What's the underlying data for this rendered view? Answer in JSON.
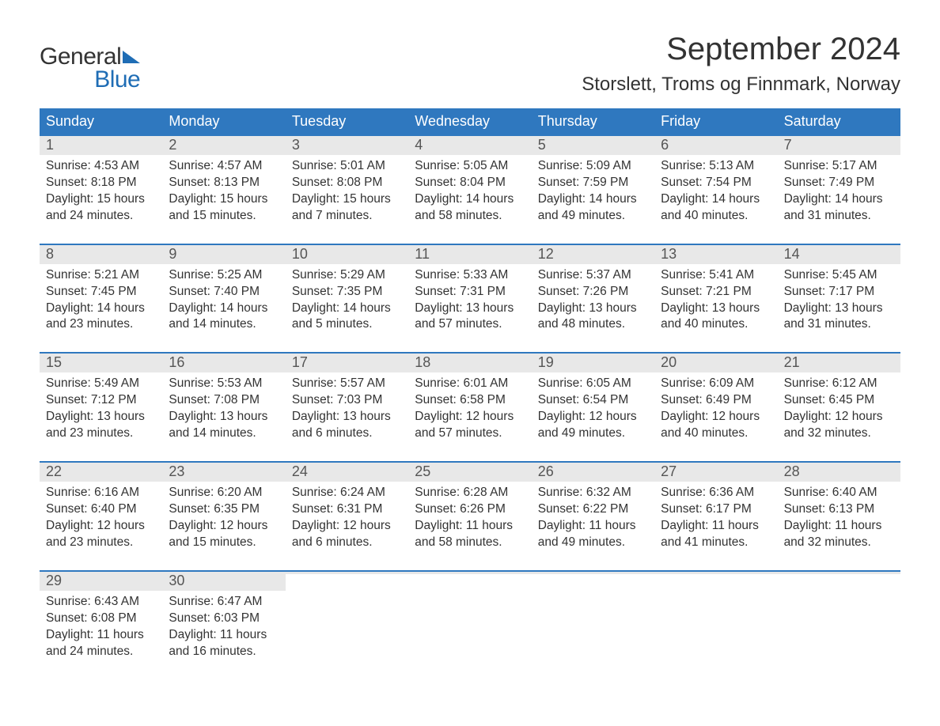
{
  "brand": {
    "part1": "General",
    "part2": "Blue"
  },
  "title": "September 2024",
  "location": "Storslett, Troms og Finnmark, Norway",
  "colors": {
    "header_blue": "#2f78bf",
    "logo_blue": "#1f6db5",
    "row_alt": "#e8e8e8",
    "text": "#333333"
  },
  "daynames": [
    "Sunday",
    "Monday",
    "Tuesday",
    "Wednesday",
    "Thursday",
    "Friday",
    "Saturday"
  ],
  "weeks": [
    [
      {
        "n": "1",
        "sr": "Sunrise: 4:53 AM",
        "ss": "Sunset: 8:18 PM",
        "d1": "Daylight: 15 hours",
        "d2": "and 24 minutes."
      },
      {
        "n": "2",
        "sr": "Sunrise: 4:57 AM",
        "ss": "Sunset: 8:13 PM",
        "d1": "Daylight: 15 hours",
        "d2": "and 15 minutes."
      },
      {
        "n": "3",
        "sr": "Sunrise: 5:01 AM",
        "ss": "Sunset: 8:08 PM",
        "d1": "Daylight: 15 hours",
        "d2": "and 7 minutes."
      },
      {
        "n": "4",
        "sr": "Sunrise: 5:05 AM",
        "ss": "Sunset: 8:04 PM",
        "d1": "Daylight: 14 hours",
        "d2": "and 58 minutes."
      },
      {
        "n": "5",
        "sr": "Sunrise: 5:09 AM",
        "ss": "Sunset: 7:59 PM",
        "d1": "Daylight: 14 hours",
        "d2": "and 49 minutes."
      },
      {
        "n": "6",
        "sr": "Sunrise: 5:13 AM",
        "ss": "Sunset: 7:54 PM",
        "d1": "Daylight: 14 hours",
        "d2": "and 40 minutes."
      },
      {
        "n": "7",
        "sr": "Sunrise: 5:17 AM",
        "ss": "Sunset: 7:49 PM",
        "d1": "Daylight: 14 hours",
        "d2": "and 31 minutes."
      }
    ],
    [
      {
        "n": "8",
        "sr": "Sunrise: 5:21 AM",
        "ss": "Sunset: 7:45 PM",
        "d1": "Daylight: 14 hours",
        "d2": "and 23 minutes."
      },
      {
        "n": "9",
        "sr": "Sunrise: 5:25 AM",
        "ss": "Sunset: 7:40 PM",
        "d1": "Daylight: 14 hours",
        "d2": "and 14 minutes."
      },
      {
        "n": "10",
        "sr": "Sunrise: 5:29 AM",
        "ss": "Sunset: 7:35 PM",
        "d1": "Daylight: 14 hours",
        "d2": "and 5 minutes."
      },
      {
        "n": "11",
        "sr": "Sunrise: 5:33 AM",
        "ss": "Sunset: 7:31 PM",
        "d1": "Daylight: 13 hours",
        "d2": "and 57 minutes."
      },
      {
        "n": "12",
        "sr": "Sunrise: 5:37 AM",
        "ss": "Sunset: 7:26 PM",
        "d1": "Daylight: 13 hours",
        "d2": "and 48 minutes."
      },
      {
        "n": "13",
        "sr": "Sunrise: 5:41 AM",
        "ss": "Sunset: 7:21 PM",
        "d1": "Daylight: 13 hours",
        "d2": "and 40 minutes."
      },
      {
        "n": "14",
        "sr": "Sunrise: 5:45 AM",
        "ss": "Sunset: 7:17 PM",
        "d1": "Daylight: 13 hours",
        "d2": "and 31 minutes."
      }
    ],
    [
      {
        "n": "15",
        "sr": "Sunrise: 5:49 AM",
        "ss": "Sunset: 7:12 PM",
        "d1": "Daylight: 13 hours",
        "d2": "and 23 minutes."
      },
      {
        "n": "16",
        "sr": "Sunrise: 5:53 AM",
        "ss": "Sunset: 7:08 PM",
        "d1": "Daylight: 13 hours",
        "d2": "and 14 minutes."
      },
      {
        "n": "17",
        "sr": "Sunrise: 5:57 AM",
        "ss": "Sunset: 7:03 PM",
        "d1": "Daylight: 13 hours",
        "d2": "and 6 minutes."
      },
      {
        "n": "18",
        "sr": "Sunrise: 6:01 AM",
        "ss": "Sunset: 6:58 PM",
        "d1": "Daylight: 12 hours",
        "d2": "and 57 minutes."
      },
      {
        "n": "19",
        "sr": "Sunrise: 6:05 AM",
        "ss": "Sunset: 6:54 PM",
        "d1": "Daylight: 12 hours",
        "d2": "and 49 minutes."
      },
      {
        "n": "20",
        "sr": "Sunrise: 6:09 AM",
        "ss": "Sunset: 6:49 PM",
        "d1": "Daylight: 12 hours",
        "d2": "and 40 minutes."
      },
      {
        "n": "21",
        "sr": "Sunrise: 6:12 AM",
        "ss": "Sunset: 6:45 PM",
        "d1": "Daylight: 12 hours",
        "d2": "and 32 minutes."
      }
    ],
    [
      {
        "n": "22",
        "sr": "Sunrise: 6:16 AM",
        "ss": "Sunset: 6:40 PM",
        "d1": "Daylight: 12 hours",
        "d2": "and 23 minutes."
      },
      {
        "n": "23",
        "sr": "Sunrise: 6:20 AM",
        "ss": "Sunset: 6:35 PM",
        "d1": "Daylight: 12 hours",
        "d2": "and 15 minutes."
      },
      {
        "n": "24",
        "sr": "Sunrise: 6:24 AM",
        "ss": "Sunset: 6:31 PM",
        "d1": "Daylight: 12 hours",
        "d2": "and 6 minutes."
      },
      {
        "n": "25",
        "sr": "Sunrise: 6:28 AM",
        "ss": "Sunset: 6:26 PM",
        "d1": "Daylight: 11 hours",
        "d2": "and 58 minutes."
      },
      {
        "n": "26",
        "sr": "Sunrise: 6:32 AM",
        "ss": "Sunset: 6:22 PM",
        "d1": "Daylight: 11 hours",
        "d2": "and 49 minutes."
      },
      {
        "n": "27",
        "sr": "Sunrise: 6:36 AM",
        "ss": "Sunset: 6:17 PM",
        "d1": "Daylight: 11 hours",
        "d2": "and 41 minutes."
      },
      {
        "n": "28",
        "sr": "Sunrise: 6:40 AM",
        "ss": "Sunset: 6:13 PM",
        "d1": "Daylight: 11 hours",
        "d2": "and 32 minutes."
      }
    ],
    [
      {
        "n": "29",
        "sr": "Sunrise: 6:43 AM",
        "ss": "Sunset: 6:08 PM",
        "d1": "Daylight: 11 hours",
        "d2": "and 24 minutes."
      },
      {
        "n": "30",
        "sr": "Sunrise: 6:47 AM",
        "ss": "Sunset: 6:03 PM",
        "d1": "Daylight: 11 hours",
        "d2": "and 16 minutes."
      },
      {
        "n": "",
        "sr": "",
        "ss": "",
        "d1": "",
        "d2": ""
      },
      {
        "n": "",
        "sr": "",
        "ss": "",
        "d1": "",
        "d2": ""
      },
      {
        "n": "",
        "sr": "",
        "ss": "",
        "d1": "",
        "d2": ""
      },
      {
        "n": "",
        "sr": "",
        "ss": "",
        "d1": "",
        "d2": ""
      },
      {
        "n": "",
        "sr": "",
        "ss": "",
        "d1": "",
        "d2": ""
      }
    ]
  ]
}
